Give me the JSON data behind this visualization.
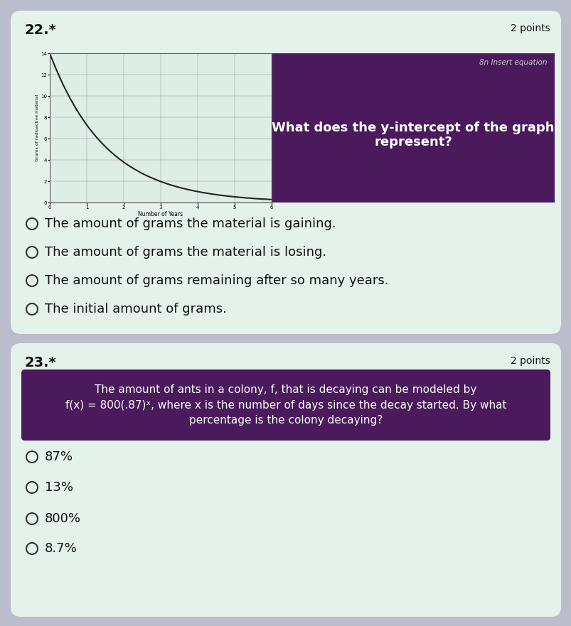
{
  "page_bg": "#bbbccc",
  "card1_bg": "#e4f2ea",
  "card2_bg": "#e4f2ea",
  "q22_number": "22.*",
  "q22_points": "2 points",
  "q23_number": "23.*",
  "q23_points": "2 points",
  "graph_plot_bg": "#deeee6",
  "graph_border_color": "#333333",
  "graph_line_color": "#222222",
  "graph_ylabel": "Grams of radioactive material",
  "graph_xlabel": "Number of Years",
  "graph_xlim": [
    0,
    6
  ],
  "graph_ylim": [
    0,
    14
  ],
  "graph_yticks": [
    0,
    2,
    4,
    6,
    8,
    10,
    12,
    14
  ],
  "graph_xticks": [
    0,
    1,
    2,
    3,
    4,
    5,
    6
  ],
  "decay_a": 14,
  "decay_b": 0.52,
  "purple_panel_bg": "#4a1a5c",
  "purple_box_bg": "#4a1a5c",
  "purple_box_text_color": "#ffffff",
  "insert_equation_text": "8n Insert equation",
  "question22_text": "What does the y-intercept of the graph represent?",
  "options22": [
    "The amount of grams the material is gaining.",
    "The amount of grams the material is losing.",
    "The amount of grams remaining after so many years.",
    "The initial amount of grams."
  ],
  "question23_box_text": "The amount of ants in a colony, f, that is decaying can be modeled by\nf(x) = 800(.87)ˣ, where x is the number of days since the decay started. By what\npercentage is the colony decaying?",
  "options23": [
    "87%",
    "13%",
    "800%",
    "8.7%"
  ],
  "option_circle_color": "#333333",
  "text_color": "#111111",
  "font_size_question_number": 14,
  "font_size_points": 10,
  "font_size_options": 13,
  "font_size_q22_title": 13,
  "font_size_q23_box": 11
}
